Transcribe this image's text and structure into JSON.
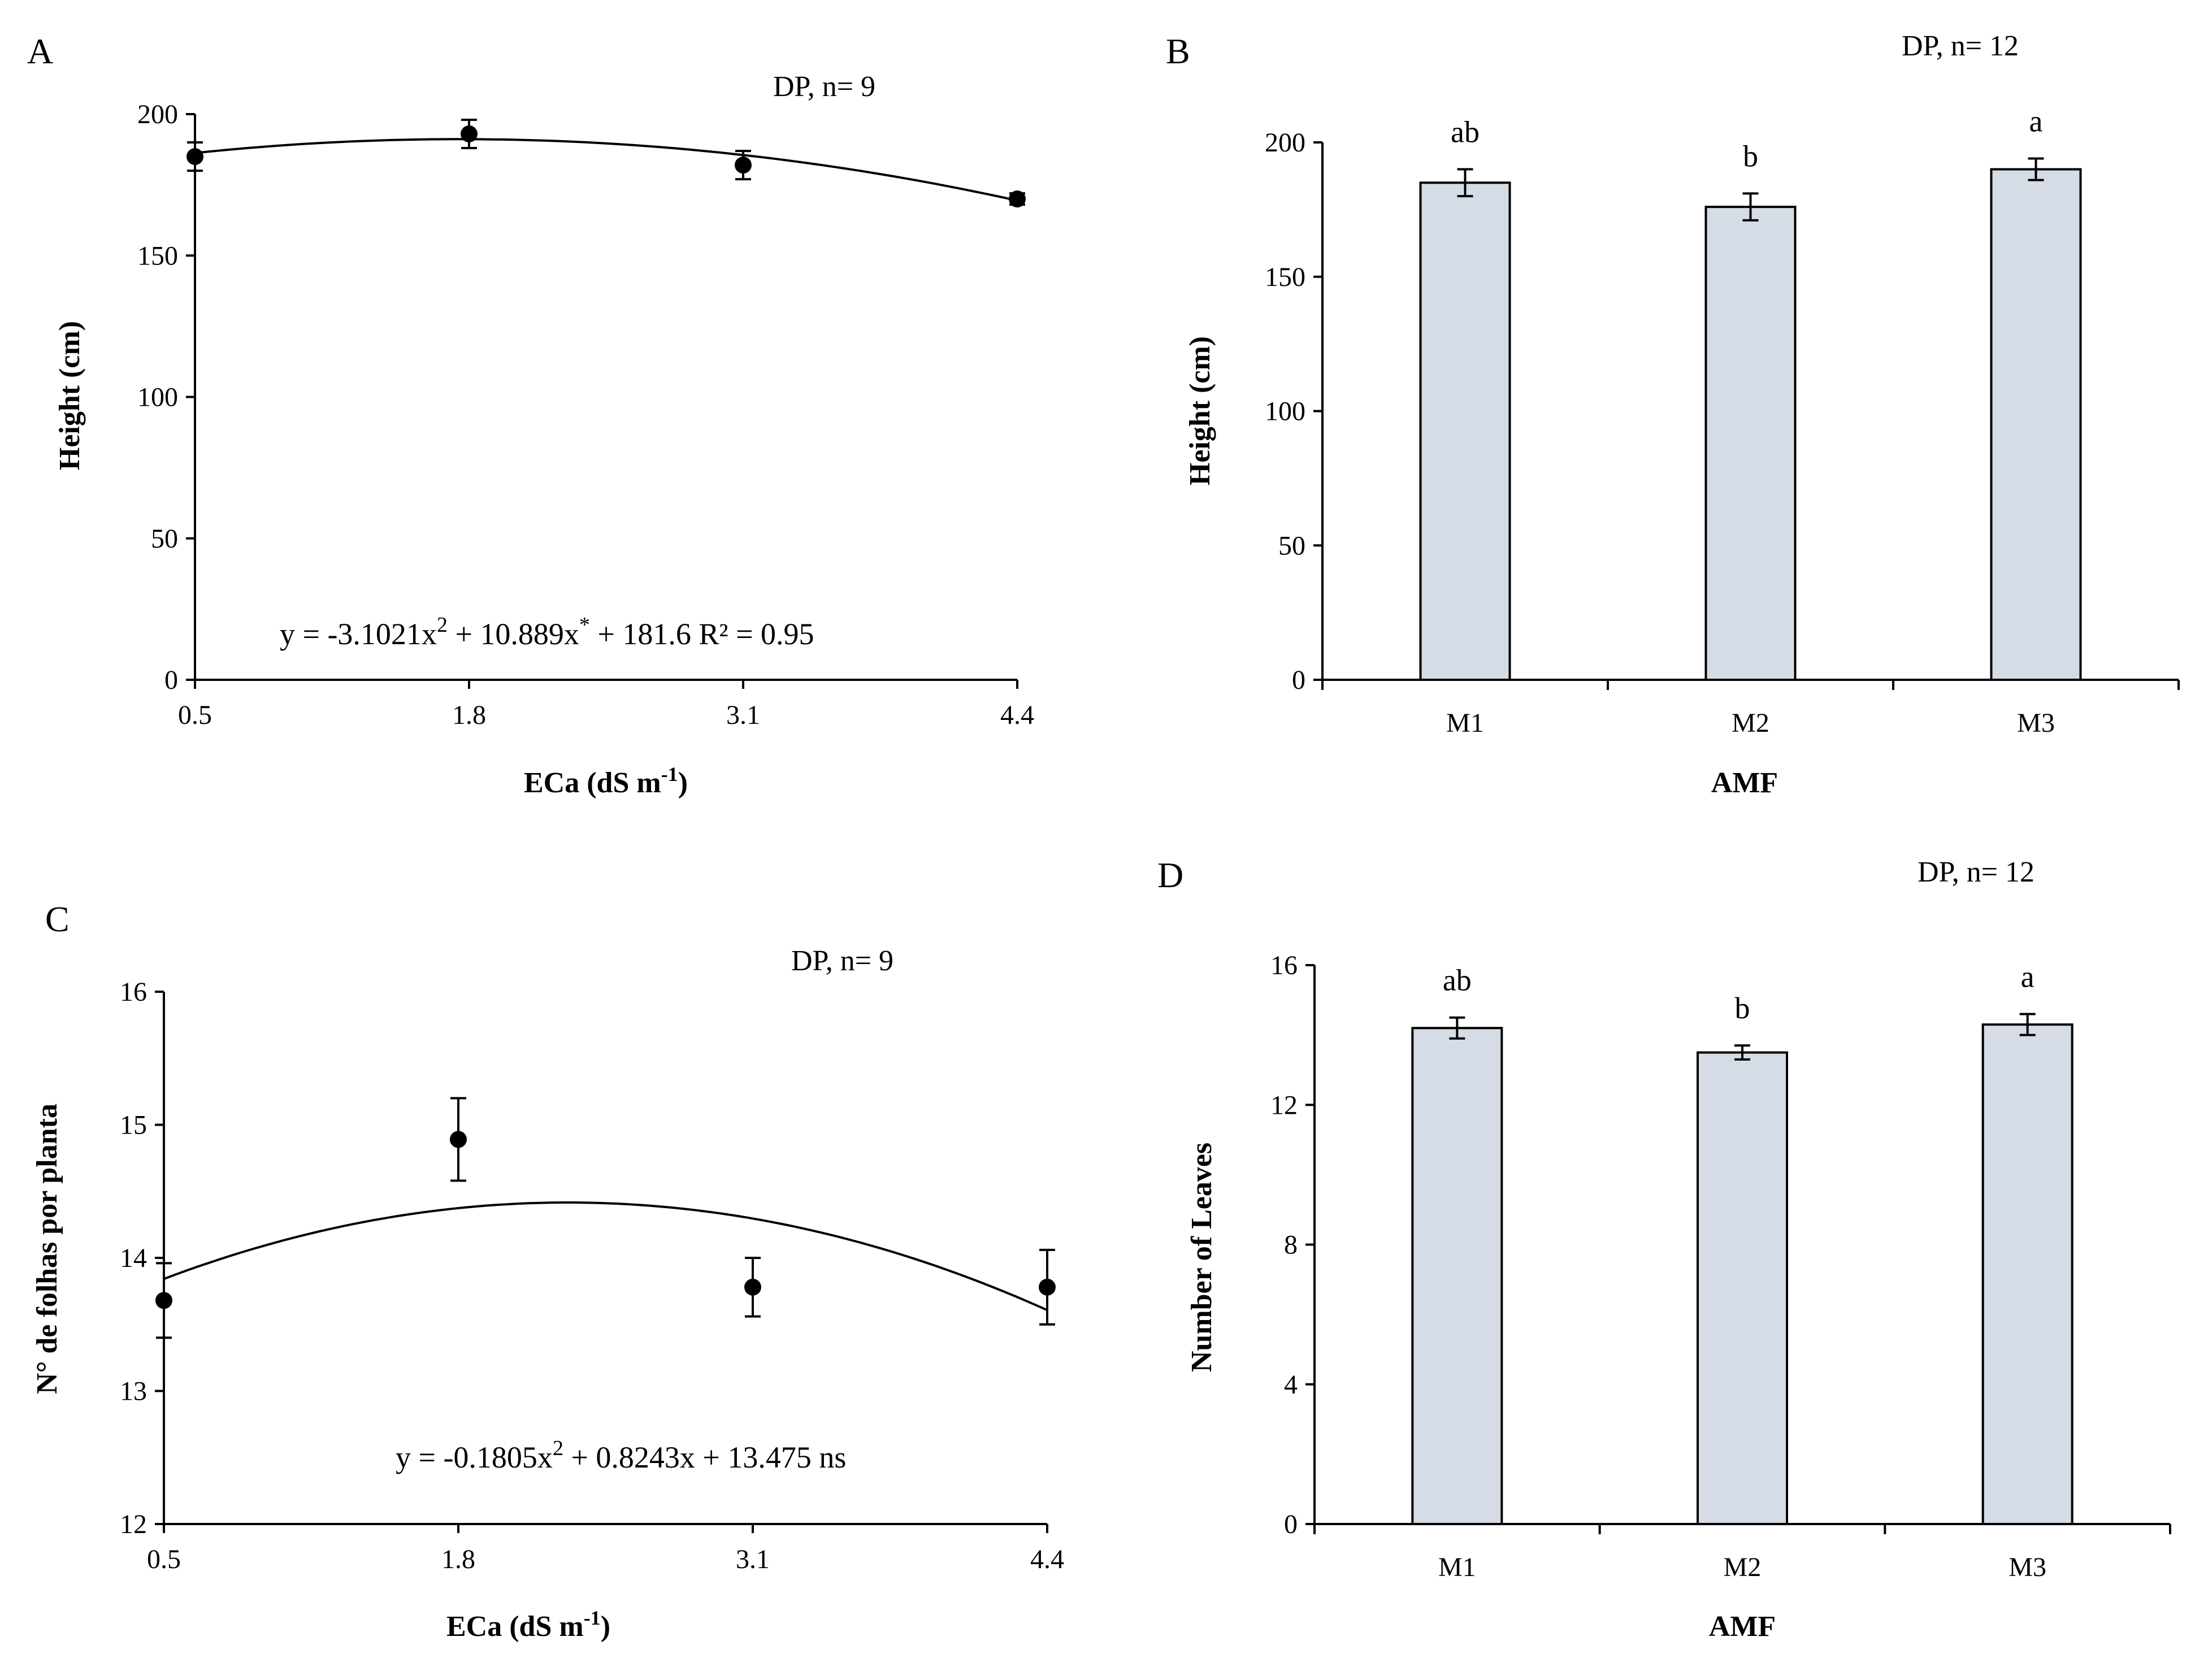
{
  "colors": {
    "bar_fill": "#d5dce6",
    "ink": "#000000"
  },
  "chart_data": [
    {
      "id": "A",
      "type": "scatter",
      "panel_label": "A",
      "note": "DP, n= 9",
      "x_tick_labels": [
        "0.5",
        "1.8",
        "3.1",
        "4.4"
      ],
      "x": [
        0.5,
        1.8,
        3.1,
        4.4
      ],
      "y": [
        185,
        193,
        182,
        170
      ],
      "err": [
        5,
        5,
        5,
        2
      ],
      "fit_coeffs": [
        -3.1021,
        10.889,
        181.6
      ],
      "equation": {
        "pre": "y = -3.1021x",
        "sup": "2",
        "mid": " + 10.889x",
        "sup2": "*",
        "post": " + 181.6 R² = 0.95"
      },
      "xlabel": {
        "text": "ECa (dS m",
        "sup": "-1",
        "tail": ")"
      },
      "ylabel": "Height (cm)",
      "xlim": [
        0.5,
        4.4
      ],
      "ylim": [
        0,
        200
      ],
      "yticks": [
        0,
        50,
        100,
        150,
        200
      ]
    },
    {
      "id": "B",
      "type": "bar",
      "panel_label": "B",
      "note": "DP, n= 12",
      "categories": [
        "M1",
        "M2",
        "M3"
      ],
      "values": [
        185,
        176,
        190
      ],
      "err": [
        5,
        5,
        4
      ],
      "letters": [
        "ab",
        "b",
        "a"
      ],
      "xlabel": "AMF",
      "ylabel": "Height (cm)",
      "ylim": [
        0,
        200
      ],
      "yticks": [
        0,
        50,
        100,
        150,
        200
      ]
    },
    {
      "id": "C",
      "type": "scatter",
      "panel_label": "C",
      "note": "DP, n= 9",
      "x_tick_labels": [
        "0.5",
        "1.8",
        "3.1",
        "4.4"
      ],
      "x": [
        0.5,
        1.8,
        3.1,
        4.4
      ],
      "y": [
        13.68,
        14.89,
        13.78,
        13.78
      ],
      "err": [
        0.28,
        0.31,
        0.22,
        0.28
      ],
      "fit_coeffs": [
        -0.1805,
        0.8243,
        13.475
      ],
      "equation": {
        "pre": "y = -0.1805x",
        "sup": "2",
        "post": " + 0.8243x + 13.475 ns"
      },
      "xlabel": {
        "text": "ECa (dS m",
        "sup": "-1",
        "tail": ")"
      },
      "ylabel": "N° de folhas por planta",
      "xlim": [
        0.5,
        4.4
      ],
      "ylim": [
        12,
        16
      ],
      "yticks": [
        12,
        13,
        14,
        15,
        16
      ]
    },
    {
      "id": "D",
      "type": "bar",
      "panel_label": "D",
      "note": "DP, n= 12",
      "categories": [
        "M1",
        "M2",
        "M3"
      ],
      "values": [
        14.2,
        13.5,
        14.3
      ],
      "err": [
        0.3,
        0.2,
        0.3
      ],
      "letters": [
        "ab",
        "b",
        "a"
      ],
      "xlabel": "AMF",
      "ylabel": "Number of  Leaves",
      "ylim": [
        0,
        16
      ],
      "yticks": [
        0,
        4,
        8,
        12,
        16
      ]
    }
  ]
}
